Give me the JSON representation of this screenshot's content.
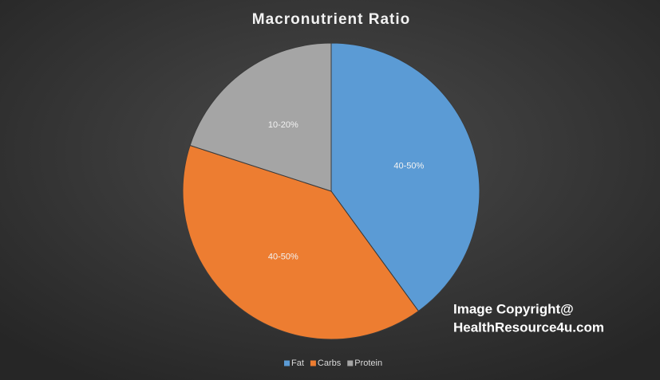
{
  "chart_data": {
    "type": "pie",
    "title": "Macronutrient Ratio",
    "categories": [
      "Fat",
      "Carbs",
      "Protein"
    ],
    "values": [
      40,
      40,
      20
    ],
    "value_labels": [
      "40-50%",
      "40-50%",
      "10-20%"
    ],
    "colors": [
      "#5b9bd5",
      "#ed7d31",
      "#a5a5a5"
    ],
    "legend": "bottom",
    "annotations": [
      "Image Copyright@",
      "HealthResource4u.com"
    ]
  }
}
